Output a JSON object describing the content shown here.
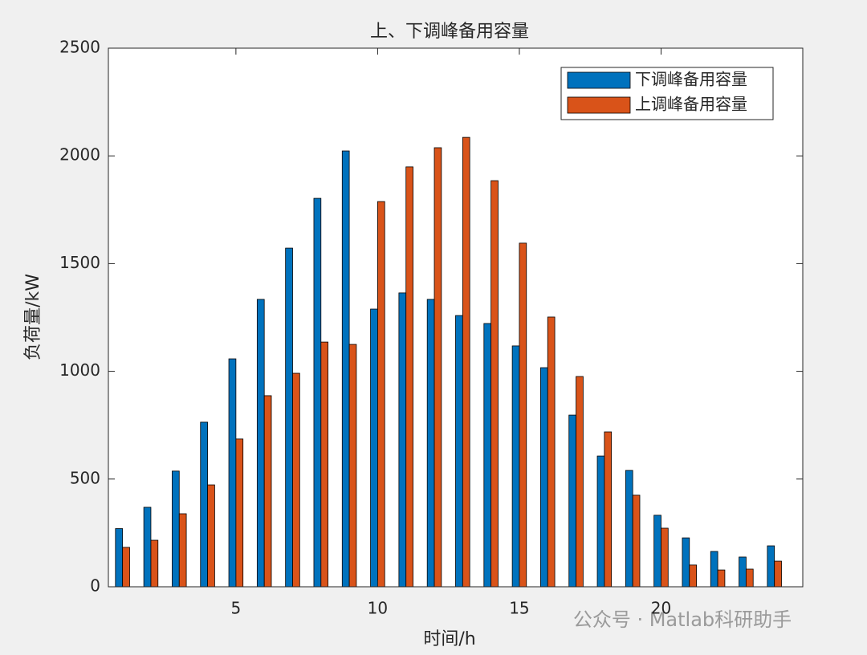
{
  "chart_data": {
    "type": "bar",
    "title": "上、下调峰备用容量",
    "x_label": "时间/h",
    "y_label": "负荷量/kW",
    "x": [
      1,
      2,
      3,
      4,
      5,
      6,
      7,
      8,
      9,
      10,
      11,
      12,
      13,
      14,
      15,
      16,
      17,
      18,
      19,
      20,
      21,
      22,
      23,
      24
    ],
    "series": [
      {
        "name": "下调峰备用容量",
        "color": "#0072bd",
        "values": [
          270,
          369,
          537,
          764,
          1058,
          1334,
          1572,
          1803,
          2023,
          1289,
          1364,
          1334,
          1259,
          1222,
          1118,
          1017,
          797,
          607,
          540,
          332,
          227,
          164,
          138,
          190
        ]
      },
      {
        "name": "上调峰备用容量",
        "color": "#d95319",
        "values": [
          183,
          216,
          339,
          473,
          686,
          887,
          991,
          1136,
          1125,
          1788,
          1949,
          2038,
          2086,
          1885,
          1595,
          1252,
          976,
          719,
          425,
          272,
          101,
          78,
          82,
          119
        ]
      }
    ],
    "xlim": [
      0.5,
      25
    ],
    "xticks": [
      5,
      10,
      15,
      20
    ],
    "ylim": [
      0,
      2500
    ],
    "yticks": [
      0,
      500,
      1000,
      1500,
      2000,
      2500
    ],
    "legend": "top-right",
    "watermark": "公众号 · Matlab科研助手"
  }
}
